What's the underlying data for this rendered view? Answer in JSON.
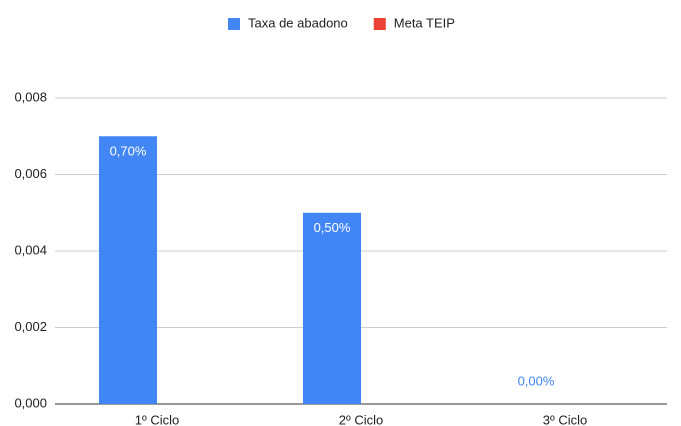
{
  "chart_data": {
    "type": "bar",
    "categories": [
      "1º Ciclo",
      "2º Ciclo",
      "3º Ciclo"
    ],
    "series": [
      {
        "name": "Taxa de abadono",
        "color": "#4285f4",
        "values": [
          0.007,
          0.005,
          0
        ],
        "value_labels": [
          "0,70%",
          "0,50%",
          "0,00%"
        ]
      },
      {
        "name": "Meta TEIP",
        "color": "#ea4335",
        "values": [
          null,
          null,
          null
        ]
      }
    ],
    "ylim": [
      0,
      0.008
    ],
    "yticks": [
      {
        "value": 0,
        "label": "0,000"
      },
      {
        "value": 0.002,
        "label": "0,002"
      },
      {
        "value": 0.004,
        "label": "0,004"
      },
      {
        "value": 0.006,
        "label": "0,006"
      },
      {
        "value": 0.008,
        "label": "0,008"
      }
    ],
    "grid": true,
    "legend": "top"
  }
}
